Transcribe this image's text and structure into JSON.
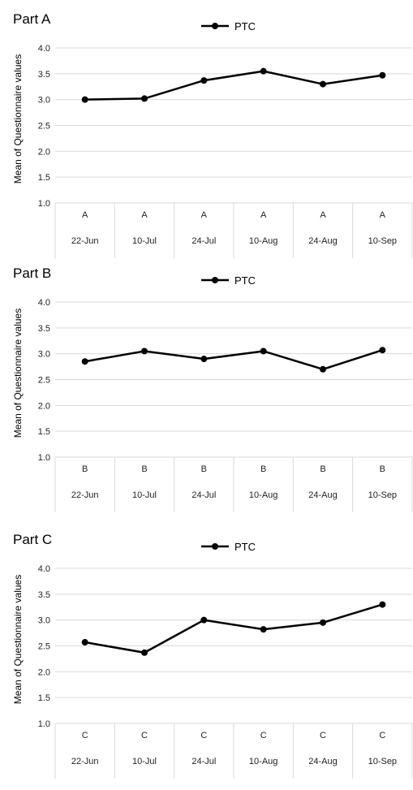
{
  "chart_data": [
    {
      "type": "line",
      "title": "Part A",
      "ylabel": "Mean of Questionnaire values",
      "ylim": [
        1.0,
        4.0
      ],
      "yticks": [
        "1.0",
        "1.5",
        "2.0",
        "2.5",
        "3.0",
        "3.5",
        "4.0"
      ],
      "grid": true,
      "legend": "top-center",
      "group_label": "A",
      "categories": [
        "22-Jun",
        "10-Jul",
        "24-Jul",
        "10-Aug",
        "24-Aug",
        "10-Sep"
      ],
      "series": [
        {
          "name": "PTC",
          "color": "#000000",
          "values": [
            3.0,
            3.02,
            3.37,
            3.55,
            3.3,
            3.47
          ]
        }
      ]
    },
    {
      "type": "line",
      "title": "Part B",
      "ylabel": "Mean of Questionnaire values",
      "ylim": [
        1.0,
        4.0
      ],
      "yticks": [
        "1.0",
        "1.5",
        "2.0",
        "2.5",
        "3.0",
        "3.5",
        "4.0"
      ],
      "grid": true,
      "legend": "top-center",
      "group_label": "B",
      "categories": [
        "22-Jun",
        "10-Jul",
        "24-Jul",
        "10-Aug",
        "24-Aug",
        "10-Sep"
      ],
      "series": [
        {
          "name": "PTC",
          "color": "#000000",
          "values": [
            2.85,
            3.05,
            2.9,
            3.05,
            2.7,
            3.07
          ]
        }
      ]
    },
    {
      "type": "line",
      "title": "Part C",
      "ylabel": "Mean of Questionnaire values",
      "ylim": [
        1.0,
        4.0
      ],
      "yticks": [
        "1.0",
        "1.5",
        "2.0",
        "2.5",
        "3.0",
        "3.5",
        "4.0"
      ],
      "grid": true,
      "legend": "top-center",
      "group_label": "C",
      "categories": [
        "22-Jun",
        "10-Jul",
        "24-Jul",
        "10-Aug",
        "24-Aug",
        "10-Sep"
      ],
      "series": [
        {
          "name": "PTC",
          "color": "#000000",
          "values": [
            2.57,
            2.37,
            3.0,
            2.82,
            2.95,
            3.3
          ]
        }
      ]
    }
  ]
}
